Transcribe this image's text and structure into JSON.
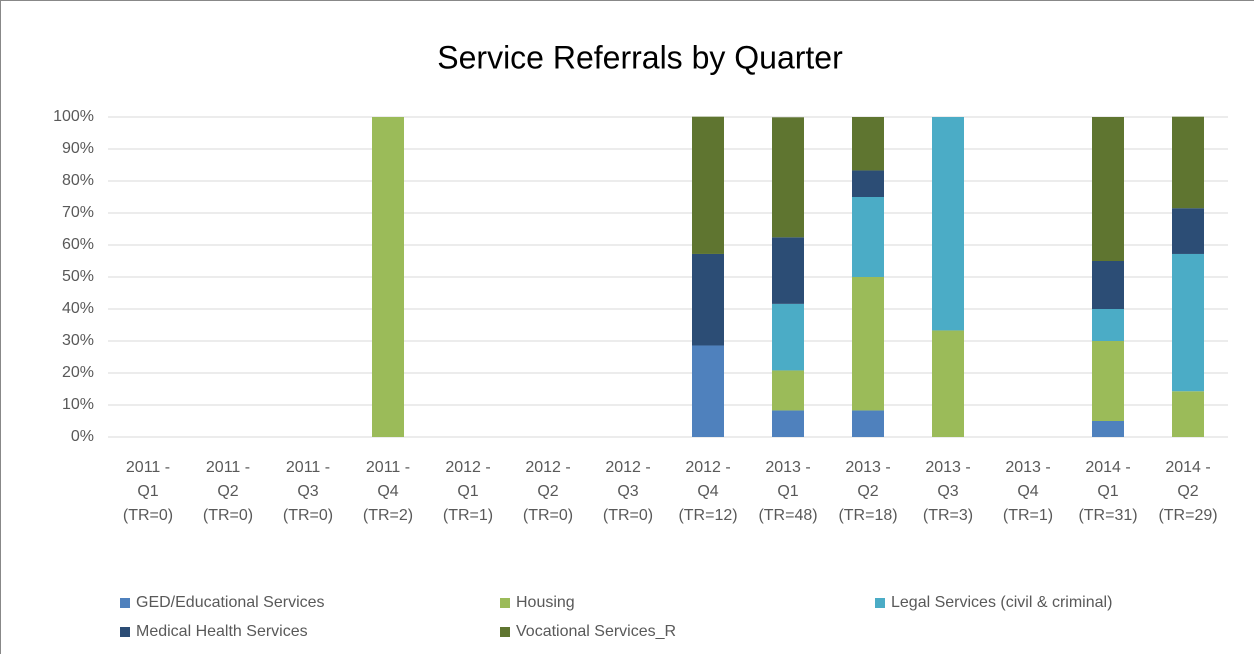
{
  "chart_data": {
    "type": "stacked_bar",
    "title": "Service Referrals by Quarter",
    "categories": [
      [
        "2011 -",
        "Q1",
        "(TR=0)"
      ],
      [
        "2011 -",
        "Q2",
        "(TR=0)"
      ],
      [
        "2011 -",
        "Q3",
        "(TR=0)"
      ],
      [
        "2011 -",
        "Q4",
        "(TR=2)"
      ],
      [
        "2012 -",
        "Q1",
        "(TR=1)"
      ],
      [
        "2012 -",
        "Q2",
        "(TR=0)"
      ],
      [
        "2012 -",
        "Q3",
        "(TR=0)"
      ],
      [
        "2012 -",
        "Q4",
        "(TR=12)"
      ],
      [
        "2013 -",
        "Q1",
        "(TR=48)"
      ],
      [
        "2013 -",
        "Q2",
        "(TR=18)"
      ],
      [
        "2013 -",
        "Q3",
        "(TR=3)"
      ],
      [
        "2013 -",
        "Q4",
        "(TR=1)"
      ],
      [
        "2014 -",
        "Q1",
        "(TR=31)"
      ],
      [
        "2014 -",
        "Q2",
        "(TR=29)"
      ]
    ],
    "series": [
      {
        "name": "GED/Educational Services",
        "color": "#4f81bd",
        "values": [
          0,
          0,
          0,
          0,
          0,
          0,
          0,
          28.6,
          8.3,
          8.3,
          0,
          0,
          5,
          0
        ]
      },
      {
        "name": "Housing",
        "color": "#9bbb59",
        "values": [
          0,
          0,
          0,
          100,
          0,
          0,
          0,
          0,
          12.5,
          41.7,
          33.3,
          0,
          25,
          14.3
        ]
      },
      {
        "name": "Legal Services (civil & criminal)",
        "color": "#4bacc6",
        "values": [
          0,
          0,
          0,
          0,
          0,
          0,
          0,
          0,
          20.8,
          25,
          66.7,
          0,
          10,
          42.9
        ]
      },
      {
        "name": "Medical Health Services",
        "color": "#2c4d75",
        "values": [
          0,
          0,
          0,
          0,
          0,
          0,
          0,
          28.6,
          20.8,
          8.3,
          0,
          0,
          15,
          14.3
        ]
      },
      {
        "name": "Vocational Services_R",
        "color": "#5f7530",
        "values": [
          0,
          0,
          0,
          0,
          0,
          0,
          0,
          42.9,
          37.5,
          16.7,
          0,
          0,
          45,
          28.6
        ]
      }
    ],
    "ylim": [
      0,
      100
    ],
    "yticks": [
      {
        "value": 0,
        "label": "0%"
      },
      {
        "value": 10,
        "label": "10%"
      },
      {
        "value": 20,
        "label": "20%"
      },
      {
        "value": 30,
        "label": "30%"
      },
      {
        "value": 40,
        "label": "40%"
      },
      {
        "value": 50,
        "label": "50%"
      },
      {
        "value": 60,
        "label": "60%"
      },
      {
        "value": 70,
        "label": "70%"
      },
      {
        "value": 80,
        "label": "80%"
      },
      {
        "value": 90,
        "label": "90%"
      },
      {
        "value": 100,
        "label": "100%"
      }
    ],
    "grid": true,
    "legend": "bottom"
  }
}
